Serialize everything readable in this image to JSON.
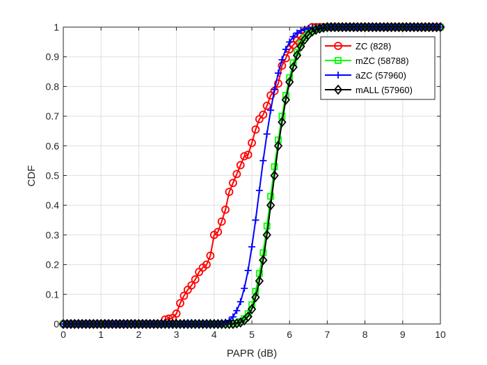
{
  "chart_data": {
    "type": "line",
    "title": "",
    "xlabel": "PAPR (dB)",
    "ylabel": "CDF",
    "xlim": [
      0,
      10
    ],
    "ylim": [
      0,
      1
    ],
    "xticks": [
      "0",
      "1",
      "2",
      "3",
      "4",
      "5",
      "6",
      "7",
      "8",
      "9",
      "10"
    ],
    "yticks": [
      "0",
      "0.1",
      "0.2",
      "0.3",
      "0.4",
      "0.5",
      "0.6",
      "0.7",
      "0.8",
      "0.9",
      "1"
    ],
    "grid": true,
    "legend_position": "top-right",
    "series": [
      {
        "name": "ZC (828)",
        "color": "#ff0000",
        "marker": "circle",
        "x": [
          0,
          0.1,
          0.2,
          0.3,
          0.4,
          0.5,
          0.6,
          0.7,
          0.8,
          0.9,
          1.0,
          1.1,
          1.2,
          1.3,
          1.4,
          1.5,
          1.6,
          1.7,
          1.8,
          1.9,
          2.0,
          2.1,
          2.2,
          2.3,
          2.4,
          2.5,
          2.6,
          2.7,
          2.8,
          2.9,
          3.0,
          3.1,
          3.2,
          3.3,
          3.4,
          3.5,
          3.6,
          3.7,
          3.8,
          3.9,
          4.0,
          4.1,
          4.2,
          4.3,
          4.4,
          4.5,
          4.6,
          4.7,
          4.8,
          4.9,
          5.0,
          5.1,
          5.2,
          5.3,
          5.4,
          5.5,
          5.6,
          5.7,
          5.8,
          5.9,
          6.0,
          6.1,
          6.2,
          6.3,
          6.4,
          6.5,
          6.6,
          6.7,
          6.8,
          6.9,
          7.0,
          7.1,
          7.2,
          7.3,
          7.4,
          7.5,
          7.6,
          7.7,
          7.8,
          7.9,
          8.0,
          8.1,
          8.2,
          8.3,
          8.4,
          8.5,
          8.6,
          8.7,
          8.8,
          8.9,
          9.0,
          9.1,
          9.2,
          9.3,
          9.4,
          9.5,
          9.6,
          9.7,
          9.8,
          9.9,
          10.0
        ],
        "y": [
          0,
          0,
          0,
          0,
          0,
          0,
          0,
          0,
          0,
          0,
          0,
          0,
          0,
          0,
          0,
          0,
          0,
          0,
          0,
          0,
          0,
          0,
          0,
          0,
          0,
          0,
          0,
          0.015,
          0.018,
          0.02,
          0.035,
          0.07,
          0.095,
          0.115,
          0.13,
          0.15,
          0.175,
          0.19,
          0.2,
          0.23,
          0.3,
          0.31,
          0.345,
          0.385,
          0.445,
          0.475,
          0.505,
          0.535,
          0.565,
          0.57,
          0.61,
          0.655,
          0.69,
          0.705,
          0.735,
          0.77,
          0.785,
          0.81,
          0.87,
          0.895,
          0.925,
          0.94,
          0.955,
          0.97,
          0.985,
          0.99,
          1.0,
          1.0,
          1.0,
          1.0,
          1.0,
          1.0,
          1.0,
          1.0,
          1.0,
          1.0,
          1.0,
          1.0,
          1.0,
          1.0,
          1.0,
          1.0,
          1.0,
          1.0,
          1.0,
          1.0,
          1.0,
          1.0,
          1.0,
          1.0,
          1.0,
          1.0,
          1.0,
          1.0,
          1.0,
          1.0,
          1.0,
          1.0,
          1.0,
          1.0,
          1.0
        ]
      },
      {
        "name": "mZC (58788)",
        "color": "#00ff00",
        "marker": "square",
        "x": [
          0,
          0.1,
          0.2,
          0.3,
          0.4,
          0.5,
          0.6,
          0.7,
          0.8,
          0.9,
          1.0,
          1.1,
          1.2,
          1.3,
          1.4,
          1.5,
          1.6,
          1.7,
          1.8,
          1.9,
          2.0,
          2.1,
          2.2,
          2.3,
          2.4,
          2.5,
          2.6,
          2.7,
          2.8,
          2.9,
          3.0,
          3.1,
          3.2,
          3.3,
          3.4,
          3.5,
          3.6,
          3.7,
          3.8,
          3.9,
          4.0,
          4.1,
          4.2,
          4.3,
          4.4,
          4.5,
          4.6,
          4.7,
          4.8,
          4.9,
          5.0,
          5.1,
          5.2,
          5.3,
          5.4,
          5.5,
          5.6,
          5.7,
          5.8,
          5.9,
          6.0,
          6.1,
          6.2,
          6.3,
          6.4,
          6.5,
          6.6,
          6.7,
          6.8,
          6.9,
          7.0,
          7.1,
          7.2,
          7.3,
          7.4,
          7.5,
          7.6,
          7.7,
          7.8,
          7.9,
          8.0,
          8.1,
          8.2,
          8.3,
          8.4,
          8.5,
          8.6,
          8.7,
          8.8,
          8.9,
          9.0,
          9.1,
          9.2,
          9.3,
          9.4,
          9.5,
          9.6,
          9.7,
          9.8,
          9.9,
          10.0
        ],
        "y": [
          0,
          0,
          0,
          0,
          0,
          0,
          0,
          0,
          0,
          0,
          0,
          0,
          0,
          0,
          0,
          0,
          0,
          0,
          0,
          0,
          0,
          0,
          0,
          0,
          0,
          0,
          0,
          0,
          0,
          0,
          0,
          0,
          0,
          0,
          0,
          0,
          0,
          0,
          0,
          0,
          0,
          0,
          0,
          0,
          0,
          0.001,
          0.003,
          0.008,
          0.018,
          0.035,
          0.065,
          0.11,
          0.17,
          0.24,
          0.33,
          0.43,
          0.53,
          0.62,
          0.7,
          0.77,
          0.83,
          0.88,
          0.915,
          0.945,
          0.965,
          0.98,
          0.988,
          0.993,
          0.996,
          0.998,
          1.0,
          1.0,
          1.0,
          1.0,
          1.0,
          1.0,
          1.0,
          1.0,
          1.0,
          1.0,
          1.0,
          1.0,
          1.0,
          1.0,
          1.0,
          1.0,
          1.0,
          1.0,
          1.0,
          1.0,
          1.0,
          1.0,
          1.0,
          1.0,
          1.0,
          1.0,
          1.0,
          1.0,
          1.0,
          1.0,
          1.0
        ]
      },
      {
        "name": "aZC (57960)",
        "color": "#0000ff",
        "marker": "plus",
        "x": [
          0,
          0.1,
          0.2,
          0.3,
          0.4,
          0.5,
          0.6,
          0.7,
          0.8,
          0.9,
          1.0,
          1.1,
          1.2,
          1.3,
          1.4,
          1.5,
          1.6,
          1.7,
          1.8,
          1.9,
          2.0,
          2.1,
          2.2,
          2.3,
          2.4,
          2.5,
          2.6,
          2.7,
          2.8,
          2.9,
          3.0,
          3.1,
          3.2,
          3.3,
          3.4,
          3.5,
          3.6,
          3.7,
          3.8,
          3.9,
          4.0,
          4.1,
          4.2,
          4.3,
          4.4,
          4.5,
          4.6,
          4.7,
          4.8,
          4.9,
          5.0,
          5.1,
          5.2,
          5.3,
          5.4,
          5.5,
          5.6,
          5.7,
          5.8,
          5.9,
          6.0,
          6.1,
          6.2,
          6.3,
          6.4,
          6.5,
          6.6,
          6.7,
          6.8,
          6.9,
          7.0,
          7.1,
          7.2,
          7.3,
          7.4,
          7.5,
          7.6,
          7.7,
          7.8,
          7.9,
          8.0,
          8.1,
          8.2,
          8.3,
          8.4,
          8.5,
          8.6,
          8.7,
          8.8,
          8.9,
          9.0,
          9.1,
          9.2,
          9.3,
          9.4,
          9.5,
          9.6,
          9.7,
          9.8,
          9.9,
          10.0
        ],
        "y": [
          0,
          0,
          0,
          0,
          0,
          0,
          0,
          0,
          0,
          0,
          0,
          0,
          0,
          0,
          0,
          0,
          0,
          0,
          0,
          0,
          0,
          0,
          0,
          0,
          0,
          0,
          0,
          0,
          0,
          0,
          0,
          0,
          0,
          0,
          0,
          0,
          0,
          0,
          0,
          0,
          0,
          0.001,
          0.003,
          0.006,
          0.012,
          0.024,
          0.045,
          0.075,
          0.12,
          0.18,
          0.26,
          0.35,
          0.45,
          0.55,
          0.64,
          0.72,
          0.79,
          0.845,
          0.89,
          0.925,
          0.95,
          0.968,
          0.98,
          0.988,
          0.993,
          0.996,
          0.998,
          0.999,
          1.0,
          1.0,
          1.0,
          1.0,
          1.0,
          1.0,
          1.0,
          1.0,
          1.0,
          1.0,
          1.0,
          1.0,
          1.0,
          1.0,
          1.0,
          1.0,
          1.0,
          1.0,
          1.0,
          1.0,
          1.0,
          1.0,
          1.0,
          1.0,
          1.0,
          1.0,
          1.0,
          1.0,
          1.0,
          1.0,
          1.0,
          1.0,
          1.0
        ]
      },
      {
        "name": "mALL (57960)",
        "color": "#000000",
        "marker": "diamond",
        "x": [
          0,
          0.1,
          0.2,
          0.3,
          0.4,
          0.5,
          0.6,
          0.7,
          0.8,
          0.9,
          1.0,
          1.1,
          1.2,
          1.3,
          1.4,
          1.5,
          1.6,
          1.7,
          1.8,
          1.9,
          2.0,
          2.1,
          2.2,
          2.3,
          2.4,
          2.5,
          2.6,
          2.7,
          2.8,
          2.9,
          3.0,
          3.1,
          3.2,
          3.3,
          3.4,
          3.5,
          3.6,
          3.7,
          3.8,
          3.9,
          4.0,
          4.1,
          4.2,
          4.3,
          4.4,
          4.5,
          4.6,
          4.7,
          4.8,
          4.9,
          5.0,
          5.1,
          5.2,
          5.3,
          5.4,
          5.5,
          5.6,
          5.7,
          5.8,
          5.9,
          6.0,
          6.1,
          6.2,
          6.3,
          6.4,
          6.5,
          6.6,
          6.7,
          6.8,
          6.9,
          7.0,
          7.1,
          7.2,
          7.3,
          7.4,
          7.5,
          7.6,
          7.7,
          7.8,
          7.9,
          8.0,
          8.1,
          8.2,
          8.3,
          8.4,
          8.5,
          8.6,
          8.7,
          8.8,
          8.9,
          9.0,
          9.1,
          9.2,
          9.3,
          9.4,
          9.5,
          9.6,
          9.7,
          9.8,
          9.9,
          10.0
        ],
        "y": [
          0,
          0,
          0,
          0,
          0,
          0,
          0,
          0,
          0,
          0,
          0,
          0,
          0,
          0,
          0,
          0,
          0,
          0,
          0,
          0,
          0,
          0,
          0,
          0,
          0,
          0,
          0,
          0,
          0,
          0,
          0,
          0,
          0,
          0,
          0,
          0,
          0,
          0,
          0,
          0,
          0,
          0,
          0,
          0,
          0,
          0,
          0.002,
          0.005,
          0.012,
          0.025,
          0.05,
          0.09,
          0.145,
          0.215,
          0.3,
          0.4,
          0.5,
          0.6,
          0.68,
          0.755,
          0.815,
          0.865,
          0.905,
          0.935,
          0.958,
          0.974,
          0.985,
          0.991,
          0.995,
          0.998,
          1.0,
          1.0,
          1.0,
          1.0,
          1.0,
          1.0,
          1.0,
          1.0,
          1.0,
          1.0,
          1.0,
          1.0,
          1.0,
          1.0,
          1.0,
          1.0,
          1.0,
          1.0,
          1.0,
          1.0,
          1.0,
          1.0,
          1.0,
          1.0,
          1.0,
          1.0,
          1.0,
          1.0,
          1.0,
          1.0,
          1.0
        ]
      }
    ]
  }
}
